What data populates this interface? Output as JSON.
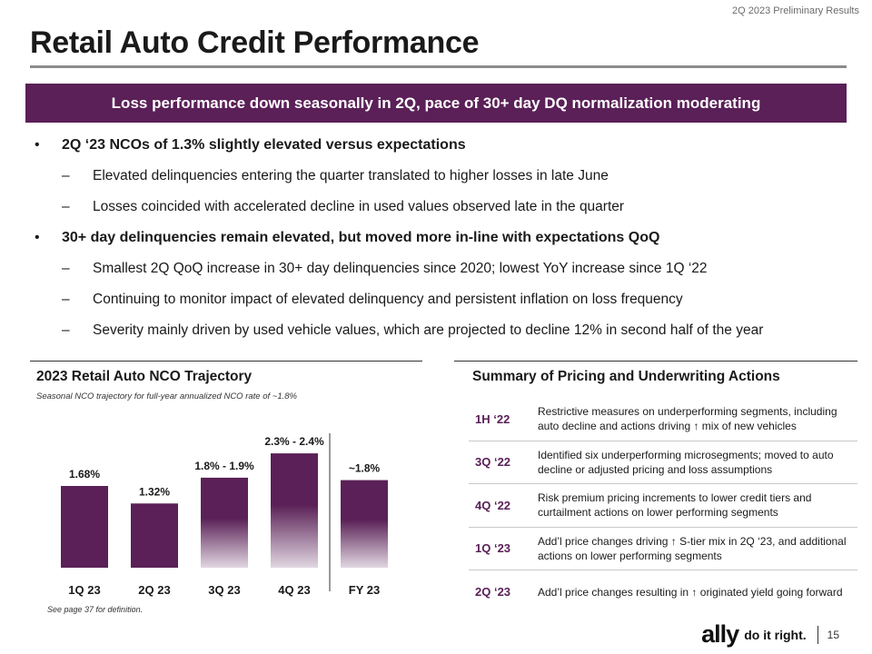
{
  "header": {
    "tag": "2Q 2023 Preliminary Results",
    "title": "Retail Auto Credit Performance"
  },
  "banner": {
    "text": "Loss performance down seasonally in 2Q, pace of 30+ day DQ normalization moderating"
  },
  "bullets": [
    {
      "text": "2Q ‘23 NCOs of 1.3% slightly elevated versus expectations",
      "subs": [
        "Elevated delinquencies entering the quarter translated to higher losses in late June",
        "Losses coincided with accelerated decline in used values observed late in the quarter"
      ]
    },
    {
      "text": "30+ day delinquencies remain elevated, but moved more in-line with expectations QoQ",
      "subs": [
        "Smallest 2Q QoQ increase in 30+ day delinquencies since 2020; lowest YoY increase since 1Q ‘22",
        "Continuing to monitor impact of elevated delinquency and persistent inflation on loss frequency",
        "Severity mainly driven by used vehicle values, which are projected to decline 12% in second half of the year"
      ]
    }
  ],
  "chart_data": {
    "type": "bar",
    "title": "2023 Retail Auto NCO Trajectory",
    "subtitle": "Seasonal NCO trajectory for full-year annualized NCO rate of ~1.8%",
    "footnote": "See page 37 for definition.",
    "categories": [
      "1Q 23",
      "2Q 23",
      "3Q 23",
      "4Q 23",
      "FY 23"
    ],
    "values": [
      1.68,
      1.32,
      1.85,
      2.35,
      1.8
    ],
    "labels": [
      "1.68%",
      "1.32%",
      "1.8% -  1.9%",
      "2.3% - 2.4%",
      "~1.8%"
    ],
    "projected": [
      false,
      false,
      true,
      true,
      true
    ],
    "ylim": [
      0,
      2.8
    ],
    "bar_color": "#5a2057",
    "xlabel": "",
    "ylabel": ""
  },
  "summary": {
    "title": "Summary of Pricing and Underwriting Actions",
    "accent": "#5a2057",
    "rows": [
      {
        "period": "1H ‘22",
        "desc": "Restrictive measures on underperforming segments, including auto decline and actions driving ↑ mix of new vehicles"
      },
      {
        "period": "3Q ‘22",
        "desc": "Identified six underperforming microsegments; moved to auto decline or adjusted pricing and loss assumptions"
      },
      {
        "period": "4Q ‘22",
        "desc": "Risk premium pricing increments to lower credit tiers and curtailment actions on lower performing segments"
      },
      {
        "period": "1Q ‘23",
        "desc": "Add’l price changes driving ↑ S-tier mix in 2Q ‘23, and additional actions on lower performing segments"
      },
      {
        "period": "2Q ‘23",
        "desc": "Add’l price changes resulting in ↑  originated yield going forward"
      }
    ]
  },
  "footer": {
    "logo": "ally",
    "tagline": "do it right.",
    "page": "15"
  }
}
